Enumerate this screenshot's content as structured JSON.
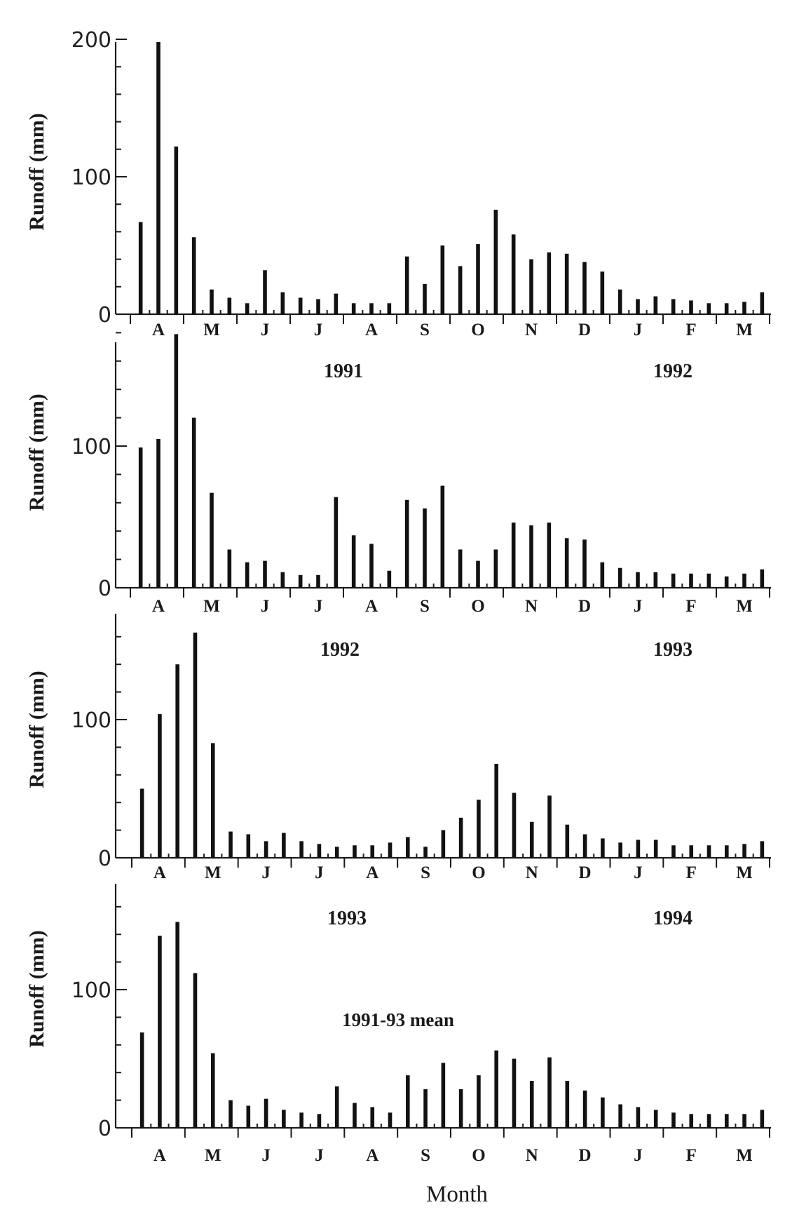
{
  "ylabel_text": "Runoff  (mm)",
  "xlabel_text": "Month",
  "chart_data": [
    {
      "type": "bar",
      "ylabel": "Runoff  (mm)",
      "ylim": [
        0,
        200
      ],
      "yticks": [
        0,
        100,
        200
      ],
      "months": [
        "A",
        "M",
        "J",
        "J",
        "A",
        "S",
        "O",
        "N",
        "D",
        "J",
        "F",
        "M"
      ],
      "year_labels": [
        "1991",
        "1992"
      ],
      "annotation": "",
      "values": [
        67,
        198,
        122,
        56,
        18,
        12,
        8,
        32,
        16,
        12,
        11,
        15,
        8,
        8,
        8,
        42,
        22,
        50,
        35,
        51,
        76,
        58,
        40,
        45,
        44,
        38,
        31,
        18,
        11,
        13,
        11,
        10,
        8,
        8,
        9,
        16
      ]
    },
    {
      "type": "bar",
      "ylabel": "Runoff  (mm)",
      "ylim": [
        0,
        180
      ],
      "yticks": [
        0,
        100
      ],
      "months": [
        "A",
        "M",
        "J",
        "J",
        "A",
        "S",
        "O",
        "N",
        "D",
        "J",
        "F",
        "M"
      ],
      "year_labels": [
        "1992",
        "1993"
      ],
      "annotation": "",
      "values": [
        99,
        105,
        179,
        120,
        67,
        27,
        18,
        19,
        11,
        9,
        9,
        64,
        37,
        31,
        12,
        62,
        56,
        72,
        27,
        19,
        27,
        46,
        44,
        46,
        35,
        34,
        18,
        14,
        11,
        11,
        10,
        10,
        10,
        8,
        10,
        13
      ]
    },
    {
      "type": "bar",
      "ylabel": "Runoff  (mm)",
      "ylim": [
        0,
        175
      ],
      "yticks": [
        0,
        100
      ],
      "months": [
        "A",
        "M",
        "J",
        "J",
        "A",
        "S",
        "O",
        "N",
        "D",
        "J",
        "F",
        "M"
      ],
      "year_labels": [
        "1993",
        "1994"
      ],
      "annotation": "",
      "values": [
        50,
        104,
        140,
        163,
        83,
        19,
        17,
        12,
        18,
        12,
        10,
        8,
        9,
        9,
        11,
        15,
        8,
        20,
        29,
        42,
        68,
        47,
        26,
        45,
        24,
        17,
        14,
        11,
        13,
        13,
        9,
        9,
        9,
        9,
        10,
        12
      ]
    },
    {
      "type": "bar",
      "ylabel": "Runoff  (mm)",
      "ylim": [
        0,
        175
      ],
      "yticks": [
        0,
        100
      ],
      "months": [
        "A",
        "M",
        "J",
        "J",
        "A",
        "S",
        "O",
        "N",
        "D",
        "J",
        "F",
        "M"
      ],
      "year_labels": [],
      "annotation": "1991-93 mean",
      "values": [
        69,
        139,
        149,
        112,
        54,
        20,
        16,
        21,
        13,
        11,
        10,
        30,
        18,
        15,
        11,
        38,
        28,
        47,
        28,
        38,
        56,
        50,
        34,
        51,
        34,
        27,
        22,
        17,
        15,
        13,
        11,
        10,
        10,
        10,
        10,
        13
      ]
    }
  ]
}
